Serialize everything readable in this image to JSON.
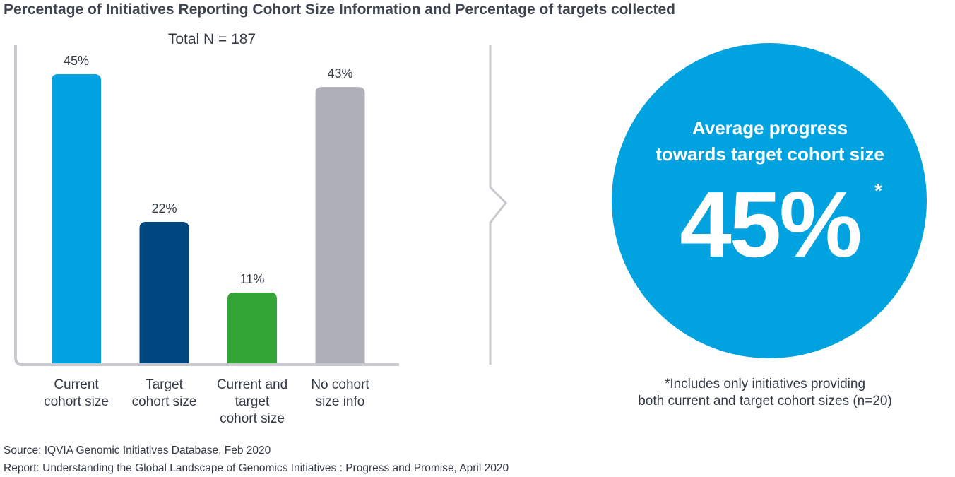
{
  "title": "Percentage of Initiatives Reporting Cohort Size Information and Percentage of targets collected",
  "chart_data": {
    "type": "bar",
    "title": "Total N = 187",
    "categories": [
      [
        "Current",
        "cohort size"
      ],
      [
        "Target",
        "cohort size"
      ],
      [
        "Current and",
        "target",
        "cohort size"
      ],
      [
        "No cohort",
        "size info"
      ]
    ],
    "values": [
      45,
      22,
      11,
      43
    ],
    "value_labels": [
      "45%",
      "22%",
      "11%",
      "43%"
    ],
    "colors": [
      "#00a3e0",
      "#00467f",
      "#33a537",
      "#afafb9"
    ],
    "ylim": [
      0,
      45
    ],
    "xlabel": "",
    "ylabel": ""
  },
  "callout": {
    "title_line1": "Average progress",
    "title_line2": "towards target cohort size",
    "value": "45%",
    "asterisk": "*",
    "color": "#00a3e0"
  },
  "footnote": {
    "line1": "*Includes only initiatives providing",
    "line2": "both current and target cohort sizes (n=20)"
  },
  "source": {
    "line1": "Source: IQVIA Genomic Initiatives Database, Feb 2020",
    "line2": "Report: Understanding the Global Landscape of Genomics Initiatives : Progress and Promise, April 2020"
  }
}
